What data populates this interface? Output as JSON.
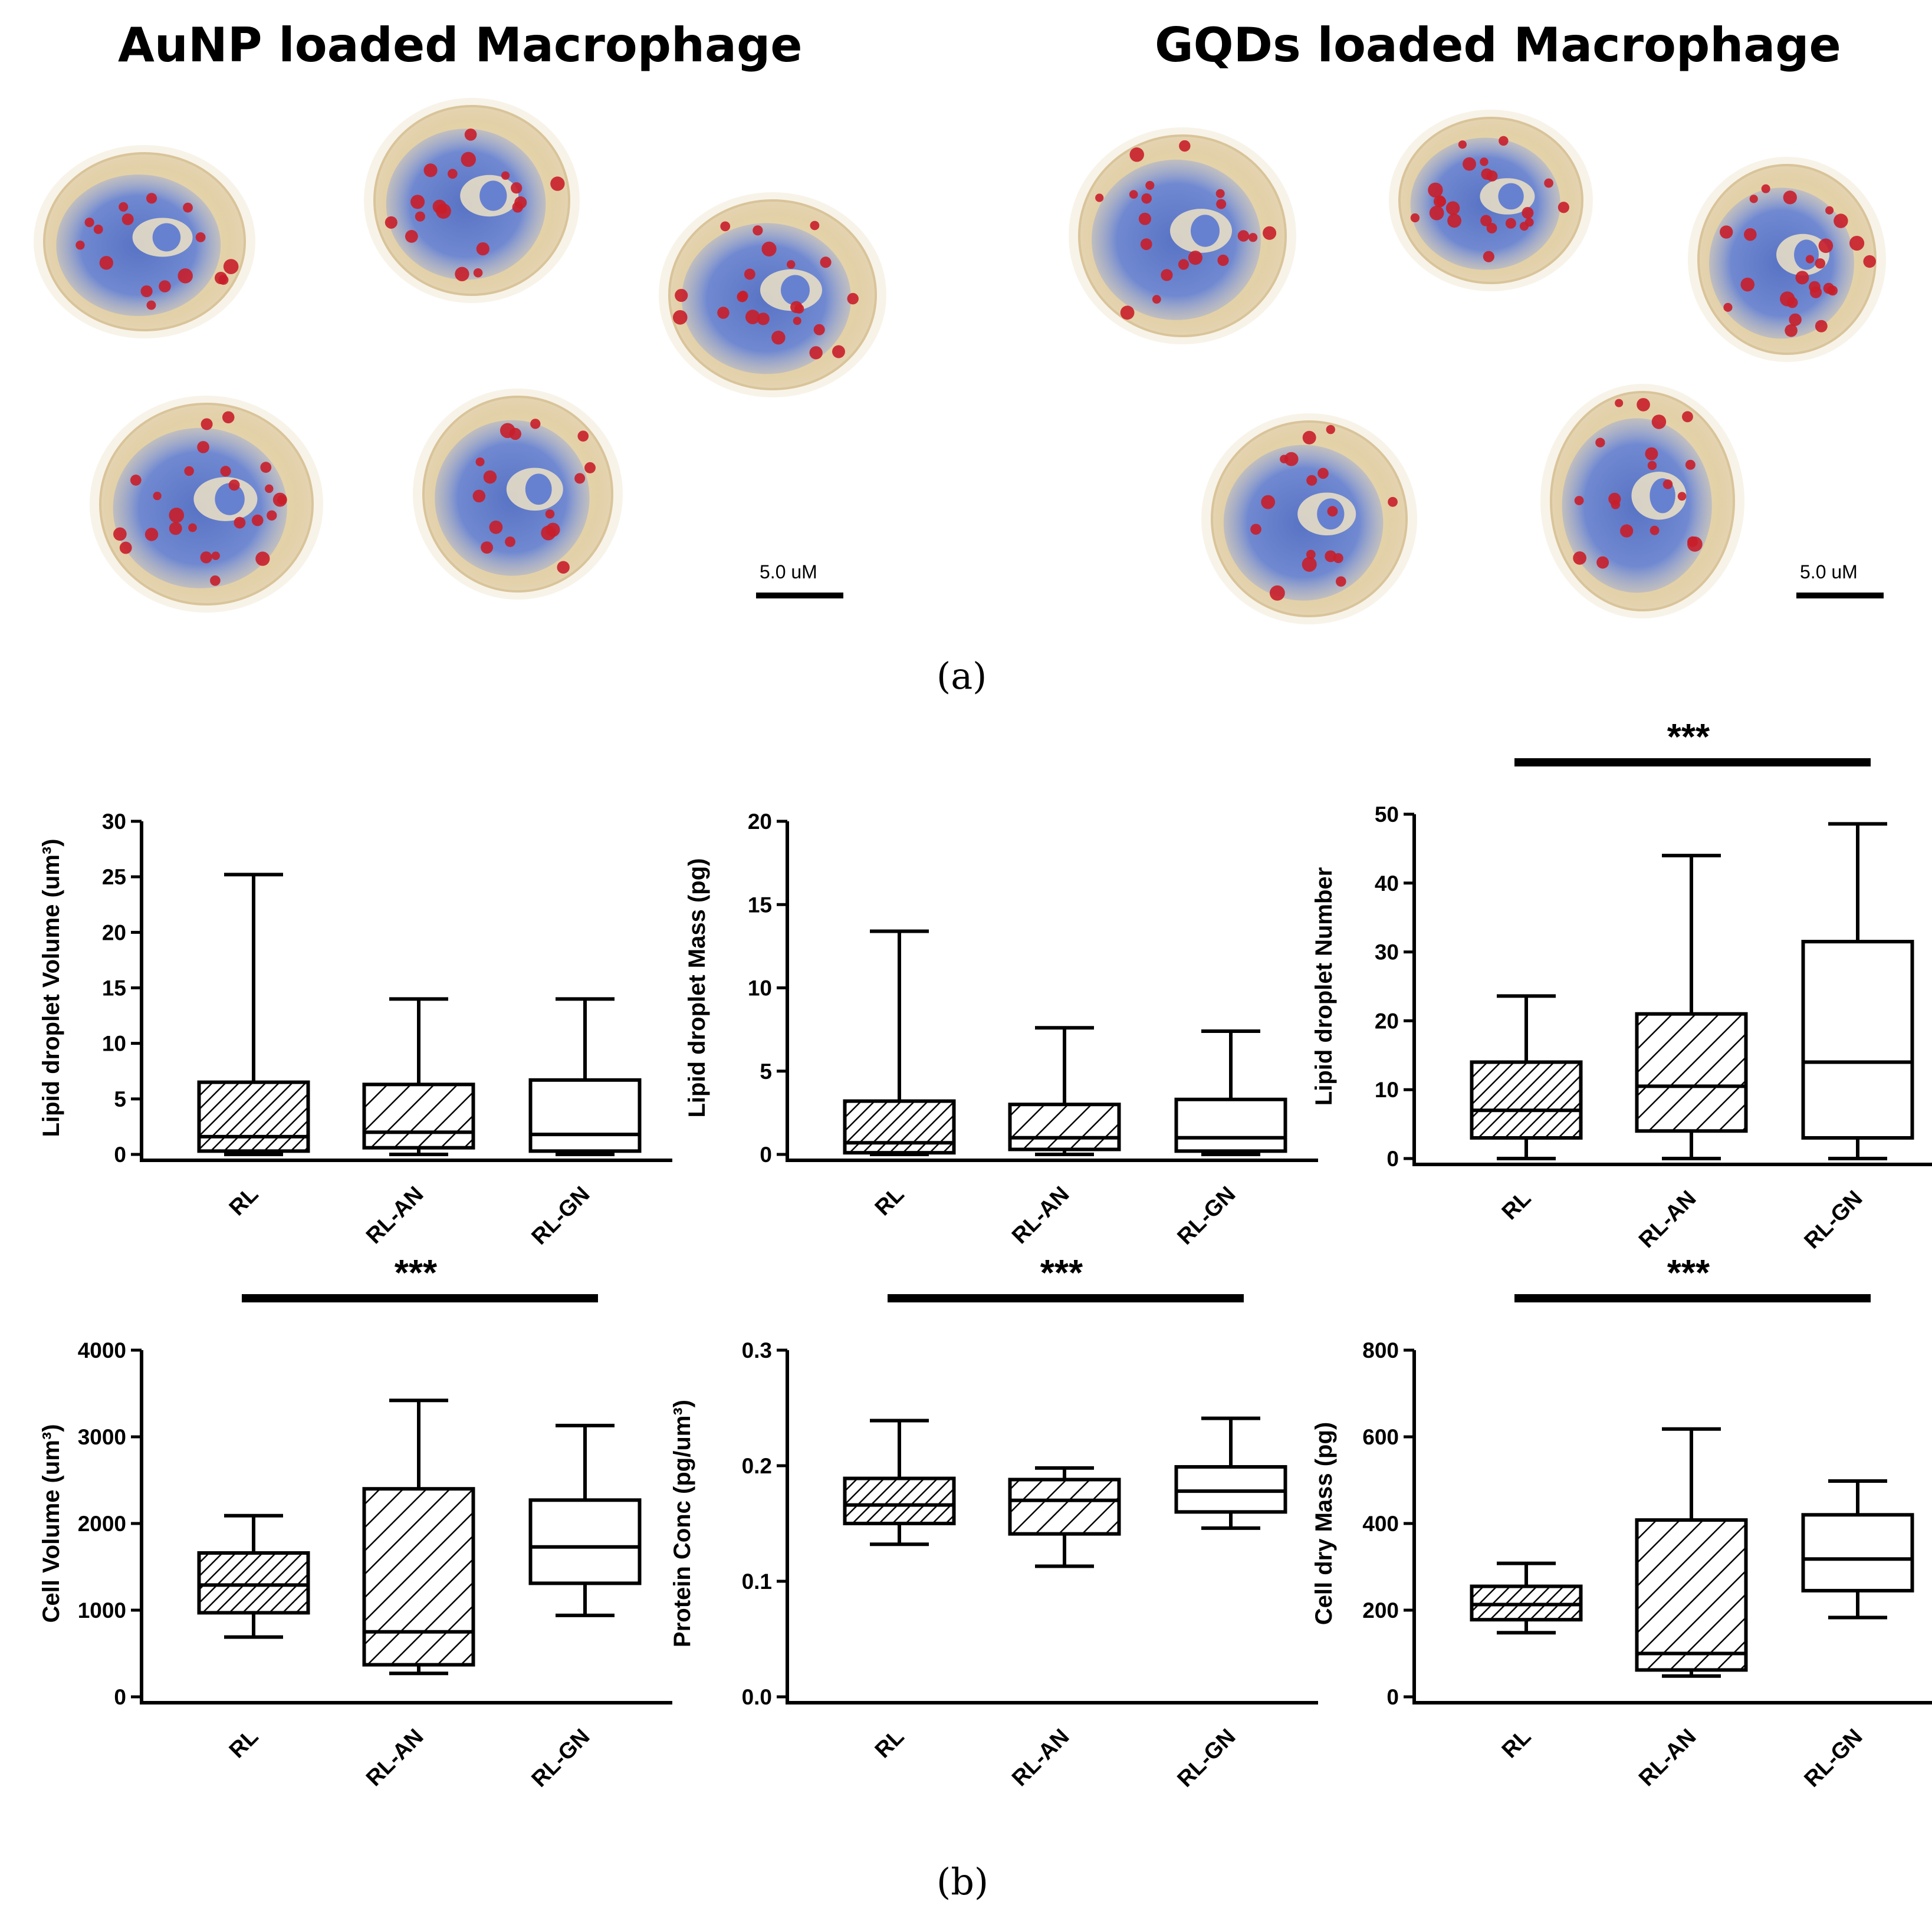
{
  "panel_a": {
    "left_title": "AuNP loaded Macrophage",
    "right_title": "GQDs loaded Macrophage",
    "scale_left": "5.0 uM",
    "scale_right": "5.0 uM",
    "label": "(a)",
    "colors": {
      "cytoplasm": "#e8d8b4",
      "nucleus": "#4a6ccf",
      "droplet": "#c81e2a"
    }
  },
  "panel_b": {
    "label": "(b)"
  },
  "chart_data": [
    {
      "type": "box",
      "title": "",
      "ylabel": "Lipid droplet Volume  (um³)",
      "categories": [
        "RL",
        "RL-AN",
        "RL-GN"
      ],
      "ylim": [
        0,
        30
      ],
      "yticks": [
        0,
        5,
        10,
        15,
        20,
        25,
        30
      ],
      "significance": "",
      "series": [
        {
          "name": "RL",
          "min": 0,
          "q1": 0.3,
          "median": 1.6,
          "q3": 6.5,
          "max": 25.2,
          "fill": "dense-hatch"
        },
        {
          "name": "RL-AN",
          "min": 0,
          "q1": 0.6,
          "median": 2.0,
          "q3": 6.3,
          "max": 14.0,
          "fill": "wide-hatch"
        },
        {
          "name": "RL-GN",
          "min": 0,
          "q1": 0.3,
          "median": 1.8,
          "q3": 6.7,
          "max": 14.0,
          "fill": "none"
        }
      ]
    },
    {
      "type": "box",
      "title": "",
      "ylabel": "Lipid droplet Mass (pg)",
      "categories": [
        "RL",
        "RL-AN",
        "RL-GN"
      ],
      "ylim": [
        0,
        20
      ],
      "yticks": [
        0,
        5,
        10,
        15,
        20
      ],
      "significance": "",
      "series": [
        {
          "name": "RL",
          "min": 0,
          "q1": 0.1,
          "median": 0.7,
          "q3": 3.2,
          "max": 13.4,
          "fill": "dense-hatch"
        },
        {
          "name": "RL-AN",
          "min": 0,
          "q1": 0.3,
          "median": 1.0,
          "q3": 3.0,
          "max": 7.6,
          "fill": "wide-hatch"
        },
        {
          "name": "RL-GN",
          "min": 0,
          "q1": 0.2,
          "median": 1.0,
          "q3": 3.3,
          "max": 7.4,
          "fill": "none"
        }
      ]
    },
    {
      "type": "box",
      "title": "",
      "ylabel": "Lipid droplet Number",
      "categories": [
        "RL",
        "RL-AN",
        "RL-GN"
      ],
      "ylim": [
        0,
        50
      ],
      "yticks": [
        0,
        10,
        20,
        30,
        40,
        50
      ],
      "significance": "***",
      "series": [
        {
          "name": "RL",
          "min": 0,
          "q1": 3,
          "median": 7,
          "q3": 14,
          "max": 23.6,
          "fill": "dense-hatch"
        },
        {
          "name": "RL-AN",
          "min": 0,
          "q1": 4,
          "median": 10.5,
          "q3": 21,
          "max": 44,
          "fill": "wide-hatch"
        },
        {
          "name": "RL-GN",
          "min": 0,
          "q1": 3,
          "median": 14,
          "q3": 31.5,
          "max": 48.6,
          "fill": "none"
        }
      ]
    },
    {
      "type": "box",
      "title": "",
      "ylabel": "Cell Volume (um³)",
      "categories": [
        "RL",
        "RL-AN",
        "RL-GN"
      ],
      "ylim": [
        0,
        4000
      ],
      "yticks": [
        0,
        1000,
        2000,
        3000,
        4000
      ],
      "significance": "***",
      "series": [
        {
          "name": "RL",
          "min": 690,
          "q1": 970,
          "median": 1290,
          "q3": 1660,
          "max": 2090,
          "fill": "dense-hatch"
        },
        {
          "name": "RL-AN",
          "min": 270,
          "q1": 370,
          "median": 750,
          "q3": 2400,
          "max": 3420,
          "fill": "wide-hatch"
        },
        {
          "name": "RL-GN",
          "min": 940,
          "q1": 1310,
          "median": 1730,
          "q3": 2270,
          "max": 3130,
          "fill": "none"
        }
      ]
    },
    {
      "type": "box",
      "title": "",
      "ylabel": "Protein Conc  (pg/um³)",
      "categories": [
        "RL",
        "RL-AN",
        "RL-GN"
      ],
      "ylim": [
        0,
        0.3
      ],
      "yticks": [
        0.0,
        0.1,
        0.2,
        0.3
      ],
      "ytick_labels": [
        "0.0",
        "0.1",
        "0.2",
        "0.3"
      ],
      "significance": "***",
      "series": [
        {
          "name": "RL",
          "min": 0.132,
          "q1": 0.15,
          "median": 0.166,
          "q3": 0.189,
          "max": 0.239,
          "fill": "dense-hatch"
        },
        {
          "name": "RL-AN",
          "min": 0.113,
          "q1": 0.141,
          "median": 0.17,
          "q3": 0.188,
          "max": 0.198,
          "fill": "wide-hatch"
        },
        {
          "name": "RL-GN",
          "min": 0.146,
          "q1": 0.16,
          "median": 0.178,
          "q3": 0.199,
          "max": 0.241,
          "fill": "none"
        }
      ]
    },
    {
      "type": "box",
      "title": "",
      "ylabel": "Cell dry Mass  (pg)",
      "categories": [
        "RL",
        "RL-AN",
        "RL-GN"
      ],
      "ylim": [
        0,
        800
      ],
      "yticks": [
        0,
        200,
        400,
        600,
        800
      ],
      "significance": "***",
      "series": [
        {
          "name": "RL",
          "min": 148,
          "q1": 178,
          "median": 213,
          "q3": 255,
          "max": 308,
          "fill": "dense-hatch"
        },
        {
          "name": "RL-AN",
          "min": 48,
          "q1": 62,
          "median": 100,
          "q3": 408,
          "max": 618,
          "fill": "wide-hatch"
        },
        {
          "name": "RL-GN",
          "min": 183,
          "q1": 245,
          "median": 318,
          "q3": 420,
          "max": 498,
          "fill": "none"
        }
      ]
    }
  ]
}
